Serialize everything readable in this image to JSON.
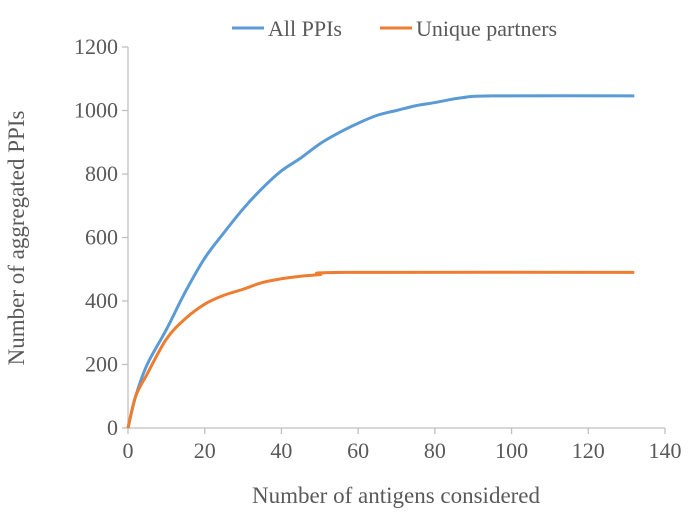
{
  "chart_data": {
    "type": "line",
    "title": "",
    "xlabel": "Number of antigens considered",
    "ylabel": "Number of aggregated PPIs",
    "xlim": [
      0,
      140
    ],
    "ylim": [
      0,
      1200
    ],
    "xticks": [
      "0",
      "20",
      "40",
      "60",
      "80",
      "100",
      "120",
      "140"
    ],
    "yticks": [
      "0",
      "200",
      "400",
      "600",
      "800",
      "1000",
      "1200"
    ],
    "grid": false,
    "legend": "top",
    "series": [
      {
        "name": "All PPIs",
        "color": "#5b9bd5",
        "x": [
          0,
          2,
          5,
          10,
          15,
          20,
          25,
          30,
          35,
          40,
          45,
          50,
          55,
          60,
          65,
          70,
          75,
          80,
          87,
          95,
          132
        ],
        "y": [
          0,
          100,
          200,
          310,
          430,
          535,
          615,
          690,
          755,
          810,
          850,
          895,
          930,
          960,
          985,
          1000,
          1015,
          1025,
          1040,
          1046,
          1046
        ]
      },
      {
        "name": "Unique partners",
        "color": "#ed7d31",
        "x": [
          0,
          2,
          5,
          10,
          15,
          20,
          25,
          30,
          35,
          40,
          45,
          50,
          57,
          132
        ],
        "y": [
          0,
          100,
          170,
          280,
          345,
          390,
          418,
          437,
          458,
          470,
          478,
          483,
          490,
          490
        ]
      }
    ]
  }
}
